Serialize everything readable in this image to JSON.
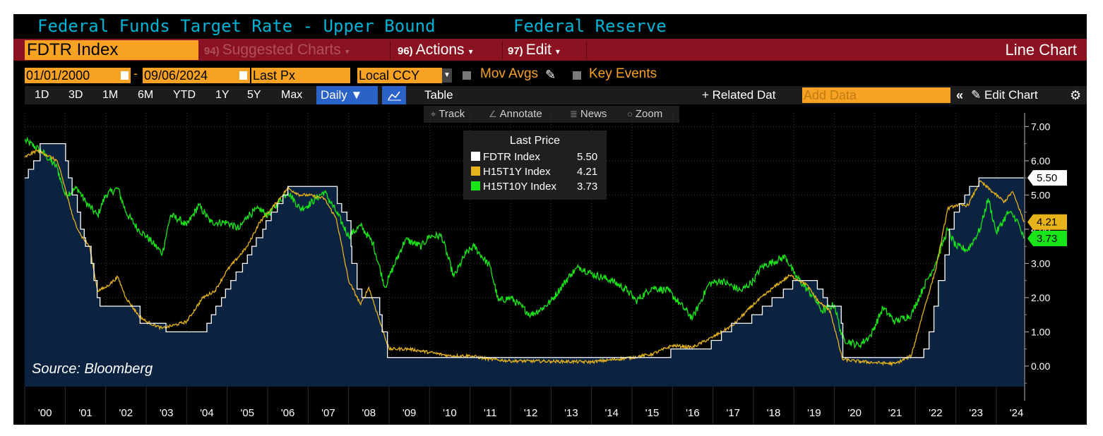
{
  "header": {
    "title": "Federal Funds Target Rate - Upper Bound",
    "source_name": "Federal Reserve"
  },
  "toolbar": {
    "ticker": "FDTR Index",
    "menu_suggested": {
      "num": "94)",
      "label": "Suggested Charts"
    },
    "menu_actions": {
      "num": "96)",
      "label": "Actions"
    },
    "menu_edit": {
      "num": "97)",
      "label": "Edit"
    },
    "chart_type": "Line Chart"
  },
  "date_row": {
    "start_date": "01/01/2000",
    "dash": "-",
    "end_date": "09/06/2024",
    "field": "Last Px",
    "currency": "Local CCY",
    "mov_avgs": "Mov Avgs",
    "key_events": "Key Events"
  },
  "range_row": {
    "buttons": [
      "1D",
      "3D",
      "1M",
      "6M",
      "YTD",
      "1Y",
      "5Y",
      "Max"
    ],
    "frequency": "Daily ▼",
    "table": "Table",
    "related": "+ Related Dat",
    "add_data_placeholder": "Add Data",
    "collapse": "«",
    "edit_chart": "Edit Chart"
  },
  "tools": {
    "track": "Track",
    "annotate": "Annotate",
    "news": "News",
    "zoom": "Zoom"
  },
  "source_note": "Source: Bloomberg",
  "colors": {
    "background": "#000000",
    "fdtr": "#ffffff",
    "fdtr_fill": "#0b2240",
    "h15t1y": "#e6b41a",
    "h15t10y": "#19e619",
    "title": "#00b3d4",
    "orange": "#f7a222",
    "red_bar": "#8a1221"
  },
  "chart_data": {
    "type": "line",
    "title": "Federal Funds Target Rate - Upper Bound",
    "legend": {
      "title": "Last Price",
      "placement": "top-center",
      "entries": [
        {
          "name": "FDTR Index",
          "value": "5.50"
        },
        {
          "name": "H15T1Y Index",
          "value": "4.21"
        },
        {
          "name": "H15T10Y Index",
          "value": "3.73"
        }
      ]
    },
    "last_value_tags": [
      "5.50",
      "4.21",
      "3.73"
    ],
    "x_range": [
      2000.0,
      2024.7
    ],
    "ylim": [
      -0.6,
      7.4
    ],
    "y_ticks": [
      0,
      1,
      2,
      3,
      4,
      5,
      6,
      7
    ],
    "y_tick_labels": [
      "0.00",
      "1.00",
      "2.00",
      "3.00",
      "4.00",
      "5.00",
      "6.00",
      "7.00"
    ],
    "x_tick_labels": [
      "'00",
      "'01",
      "'02",
      "'03",
      "'04",
      "'05",
      "'06",
      "'07",
      "'08",
      "'09",
      "'10",
      "'11",
      "'12",
      "'13",
      "'14",
      "'15",
      "'16",
      "'17",
      "'18",
      "'19",
      "'20",
      "'21",
      "'22",
      "'23",
      "'24"
    ],
    "grid": true,
    "series": [
      {
        "name": "FDTR Index",
        "style": "step-area",
        "points": [
          [
            2000.0,
            5.5
          ],
          [
            2000.09,
            5.75
          ],
          [
            2000.22,
            6.0
          ],
          [
            2000.38,
            6.5
          ],
          [
            2001.01,
            6.0
          ],
          [
            2001.08,
            5.5
          ],
          [
            2001.17,
            5.0
          ],
          [
            2001.3,
            4.5
          ],
          [
            2001.38,
            4.0
          ],
          [
            2001.47,
            3.75
          ],
          [
            2001.5,
            3.5
          ],
          [
            2001.64,
            3.0
          ],
          [
            2001.71,
            2.5
          ],
          [
            2001.79,
            2.0
          ],
          [
            2001.86,
            1.75
          ],
          [
            2002.85,
            1.25
          ],
          [
            2003.49,
            1.0
          ],
          [
            2004.5,
            1.25
          ],
          [
            2004.61,
            1.5
          ],
          [
            2004.72,
            1.75
          ],
          [
            2004.86,
            2.0
          ],
          [
            2004.96,
            2.25
          ],
          [
            2005.09,
            2.5
          ],
          [
            2005.22,
            2.75
          ],
          [
            2005.38,
            3.0
          ],
          [
            2005.5,
            3.25
          ],
          [
            2005.61,
            3.5
          ],
          [
            2005.72,
            3.75
          ],
          [
            2005.88,
            4.0
          ],
          [
            2005.96,
            4.25
          ],
          [
            2006.09,
            4.5
          ],
          [
            2006.24,
            4.75
          ],
          [
            2006.38,
            5.0
          ],
          [
            2006.5,
            5.25
          ],
          [
            2007.72,
            4.75
          ],
          [
            2007.83,
            4.5
          ],
          [
            2007.96,
            4.25
          ],
          [
            2008.06,
            3.5
          ],
          [
            2008.08,
            3.0
          ],
          [
            2008.21,
            2.25
          ],
          [
            2008.33,
            2.0
          ],
          [
            2008.77,
            1.5
          ],
          [
            2008.83,
            1.0
          ],
          [
            2008.96,
            0.25
          ],
          [
            2015.96,
            0.5
          ],
          [
            2016.96,
            0.75
          ],
          [
            2017.21,
            1.0
          ],
          [
            2017.46,
            1.25
          ],
          [
            2017.96,
            1.5
          ],
          [
            2018.22,
            1.75
          ],
          [
            2018.46,
            2.0
          ],
          [
            2018.74,
            2.25
          ],
          [
            2018.97,
            2.5
          ],
          [
            2019.58,
            2.25
          ],
          [
            2019.72,
            2.0
          ],
          [
            2019.83,
            1.75
          ],
          [
            2020.17,
            1.25
          ],
          [
            2020.21,
            0.25
          ],
          [
            2022.21,
            0.5
          ],
          [
            2022.34,
            1.0
          ],
          [
            2022.46,
            1.75
          ],
          [
            2022.57,
            2.5
          ],
          [
            2022.73,
            3.25
          ],
          [
            2022.84,
            4.0
          ],
          [
            2022.96,
            4.5
          ],
          [
            2023.09,
            4.75
          ],
          [
            2023.22,
            5.0
          ],
          [
            2023.34,
            5.25
          ],
          [
            2023.57,
            5.5
          ],
          [
            2024.68,
            5.5
          ]
        ]
      },
      {
        "name": "H15T1Y Index",
        "style": "line",
        "points": [
          [
            2000.0,
            6.1
          ],
          [
            2000.3,
            6.3
          ],
          [
            2000.5,
            6.2
          ],
          [
            2000.8,
            6.0
          ],
          [
            2001.0,
            5.2
          ],
          [
            2001.2,
            4.3
          ],
          [
            2001.4,
            3.8
          ],
          [
            2001.6,
            3.5
          ],
          [
            2001.8,
            2.2
          ],
          [
            2002.0,
            2.3
          ],
          [
            2002.3,
            2.6
          ],
          [
            2002.5,
            2.0
          ],
          [
            2002.8,
            1.5
          ],
          [
            2003.0,
            1.3
          ],
          [
            2003.4,
            1.1
          ],
          [
            2003.7,
            1.2
          ],
          [
            2004.0,
            1.3
          ],
          [
            2004.4,
            2.0
          ],
          [
            2004.7,
            2.2
          ],
          [
            2005.0,
            2.8
          ],
          [
            2005.5,
            3.5
          ],
          [
            2005.8,
            4.2
          ],
          [
            2006.1,
            4.6
          ],
          [
            2006.5,
            5.2
          ],
          [
            2006.8,
            5.0
          ],
          [
            2007.0,
            5.0
          ],
          [
            2007.4,
            4.9
          ],
          [
            2007.7,
            4.3
          ],
          [
            2008.0,
            2.5
          ],
          [
            2008.3,
            1.8
          ],
          [
            2008.5,
            2.3
          ],
          [
            2008.8,
            1.2
          ],
          [
            2009.0,
            0.5
          ],
          [
            2009.5,
            0.5
          ],
          [
            2010.0,
            0.4
          ],
          [
            2010.5,
            0.3
          ],
          [
            2011.0,
            0.3
          ],
          [
            2011.5,
            0.2
          ],
          [
            2012.0,
            0.15
          ],
          [
            2013.0,
            0.14
          ],
          [
            2014.0,
            0.12
          ],
          [
            2015.0,
            0.25
          ],
          [
            2015.5,
            0.35
          ],
          [
            2016.0,
            0.6
          ],
          [
            2016.5,
            0.55
          ],
          [
            2017.0,
            0.85
          ],
          [
            2017.5,
            1.2
          ],
          [
            2018.0,
            1.8
          ],
          [
            2018.5,
            2.3
          ],
          [
            2018.9,
            2.65
          ],
          [
            2019.3,
            2.4
          ],
          [
            2019.6,
            1.9
          ],
          [
            2019.9,
            1.6
          ],
          [
            2020.2,
            0.2
          ],
          [
            2020.5,
            0.15
          ],
          [
            2021.0,
            0.1
          ],
          [
            2021.5,
            0.07
          ],
          [
            2021.9,
            0.3
          ],
          [
            2022.2,
            1.6
          ],
          [
            2022.5,
            2.8
          ],
          [
            2022.8,
            4.6
          ],
          [
            2023.0,
            4.7
          ],
          [
            2023.3,
            4.7
          ],
          [
            2023.6,
            5.4
          ],
          [
            2023.9,
            5.1
          ],
          [
            2024.2,
            4.8
          ],
          [
            2024.4,
            5.1
          ],
          [
            2024.6,
            4.5
          ],
          [
            2024.68,
            4.21
          ]
        ]
      },
      {
        "name": "H15T10Y Index",
        "style": "line",
        "points": [
          [
            2000.0,
            6.6
          ],
          [
            2000.4,
            6.3
          ],
          [
            2000.8,
            5.8
          ],
          [
            2001.0,
            5.0
          ],
          [
            2001.3,
            5.2
          ],
          [
            2001.5,
            4.8
          ],
          [
            2001.8,
            4.4
          ],
          [
            2002.0,
            5.0
          ],
          [
            2002.3,
            5.2
          ],
          [
            2002.5,
            4.5
          ],
          [
            2002.8,
            4.0
          ],
          [
            2003.0,
            3.8
          ],
          [
            2003.4,
            3.3
          ],
          [
            2003.6,
            4.4
          ],
          [
            2003.8,
            4.3
          ],
          [
            2004.0,
            4.1
          ],
          [
            2004.3,
            4.7
          ],
          [
            2004.6,
            4.2
          ],
          [
            2005.0,
            4.2
          ],
          [
            2005.3,
            4.0
          ],
          [
            2005.5,
            4.4
          ],
          [
            2005.8,
            4.6
          ],
          [
            2006.0,
            4.4
          ],
          [
            2006.5,
            5.1
          ],
          [
            2006.8,
            4.6
          ],
          [
            2007.0,
            4.7
          ],
          [
            2007.4,
            5.1
          ],
          [
            2007.7,
            4.5
          ],
          [
            2008.0,
            3.8
          ],
          [
            2008.3,
            4.1
          ],
          [
            2008.6,
            3.6
          ],
          [
            2008.9,
            2.3
          ],
          [
            2009.0,
            2.6
          ],
          [
            2009.4,
            3.7
          ],
          [
            2009.8,
            3.5
          ],
          [
            2010.0,
            3.8
          ],
          [
            2010.3,
            3.8
          ],
          [
            2010.6,
            2.6
          ],
          [
            2010.9,
            3.3
          ],
          [
            2011.1,
            3.5
          ],
          [
            2011.5,
            2.9
          ],
          [
            2011.7,
            1.9
          ],
          [
            2012.0,
            2.0
          ],
          [
            2012.5,
            1.5
          ],
          [
            2012.8,
            1.7
          ],
          [
            2013.0,
            1.9
          ],
          [
            2013.5,
            2.7
          ],
          [
            2013.7,
            2.9
          ],
          [
            2014.0,
            2.7
          ],
          [
            2014.5,
            2.5
          ],
          [
            2014.9,
            2.2
          ],
          [
            2015.1,
            1.9
          ],
          [
            2015.5,
            2.3
          ],
          [
            2015.9,
            2.2
          ],
          [
            2016.2,
            1.8
          ],
          [
            2016.5,
            1.4
          ],
          [
            2016.9,
            2.4
          ],
          [
            2017.2,
            2.5
          ],
          [
            2017.7,
            2.2
          ],
          [
            2018.0,
            2.5
          ],
          [
            2018.2,
            2.9
          ],
          [
            2018.8,
            3.2
          ],
          [
            2019.0,
            2.7
          ],
          [
            2019.5,
            2.0
          ],
          [
            2019.7,
            1.6
          ],
          [
            2020.0,
            1.8
          ],
          [
            2020.2,
            0.8
          ],
          [
            2020.6,
            0.6
          ],
          [
            2020.9,
            0.9
          ],
          [
            2021.2,
            1.7
          ],
          [
            2021.5,
            1.3
          ],
          [
            2021.9,
            1.5
          ],
          [
            2022.2,
            2.3
          ],
          [
            2022.5,
            3.0
          ],
          [
            2022.8,
            4.0
          ],
          [
            2023.0,
            3.5
          ],
          [
            2023.3,
            3.4
          ],
          [
            2023.6,
            4.0
          ],
          [
            2023.8,
            4.9
          ],
          [
            2024.0,
            3.9
          ],
          [
            2024.3,
            4.5
          ],
          [
            2024.5,
            4.3
          ],
          [
            2024.68,
            3.73
          ]
        ]
      }
    ]
  }
}
